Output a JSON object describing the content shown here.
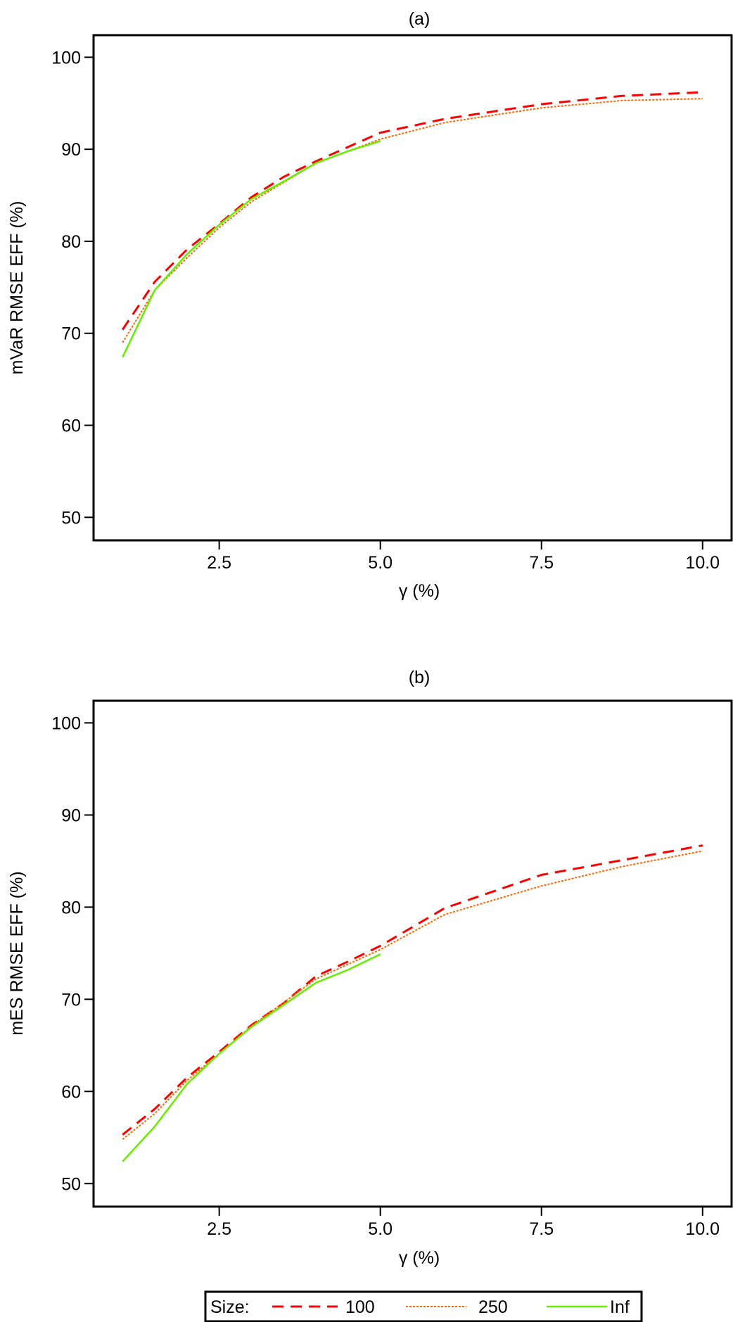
{
  "chart_data": [
    {
      "type": "line",
      "title": "(a)",
      "xlabel": "γ (%)",
      "ylabel": "mVaR RMSE EFF (%)",
      "xlim": [
        0.55,
        10.45
      ],
      "ylim": [
        47.5,
        102.4
      ],
      "xticks": [
        "2.5",
        "5.0",
        "7.5",
        "10.0"
      ],
      "xtick_values": [
        2.5,
        5.0,
        7.5,
        10.0
      ],
      "yticks": [
        "50",
        "60",
        "70",
        "80",
        "90",
        "100"
      ],
      "ytick_values": [
        50,
        60,
        70,
        80,
        90,
        100
      ],
      "grid": false,
      "series": [
        {
          "name": "100",
          "x": [
            1,
            1.5,
            2,
            2.5,
            3,
            3.5,
            4,
            5,
            6,
            7.5,
            8.75,
            10
          ],
          "y": [
            70.4,
            75.6,
            79.1,
            81.9,
            84.8,
            87.0,
            88.7,
            91.8,
            93.3,
            94.9,
            95.8,
            96.2
          ]
        },
        {
          "name": "250",
          "x": [
            1,
            1.5,
            2,
            2.5,
            3,
            4,
            5,
            6,
            7.5,
            8.75,
            10
          ],
          "y": [
            69.0,
            74.7,
            78.2,
            81.5,
            84.3,
            88.5,
            91.1,
            92.9,
            94.5,
            95.3,
            95.5
          ]
        },
        {
          "name": "Inf",
          "x": [
            1,
            1.5,
            2,
            2.5,
            3,
            3.5,
            4,
            4.5,
            5
          ],
          "y": [
            67.4,
            74.7,
            78.6,
            81.8,
            84.6,
            86.5,
            88.5,
            89.8,
            90.9
          ]
        }
      ]
    },
    {
      "type": "line",
      "title": "(b)",
      "xlabel": "γ (%)",
      "ylabel": "mES RMSE EFF (%)",
      "xlim": [
        0.55,
        10.45
      ],
      "ylim": [
        47.5,
        102.4
      ],
      "xticks": [
        "2.5",
        "5.0",
        "7.5",
        "10.0"
      ],
      "xtick_values": [
        2.5,
        5.0,
        7.5,
        10.0
      ],
      "yticks": [
        "50",
        "60",
        "70",
        "80",
        "90",
        "100"
      ],
      "ytick_values": [
        50,
        60,
        70,
        80,
        90,
        100
      ],
      "grid": false,
      "series": [
        {
          "name": "100",
          "x": [
            1,
            1.5,
            2,
            2.5,
            3,
            3.5,
            4,
            4.5,
            5,
            6,
            7.5,
            8.75,
            10
          ],
          "y": [
            55.3,
            58.1,
            61.5,
            64.3,
            67.2,
            69.6,
            72.5,
            74.1,
            75.8,
            79.9,
            83.5,
            85.1,
            86.7
          ]
        },
        {
          "name": "250",
          "x": [
            1,
            1.5,
            2,
            2.5,
            3,
            4,
            5,
            6,
            7.5,
            8.75,
            10
          ],
          "y": [
            54.8,
            57.6,
            61.2,
            64.1,
            67.1,
            72.2,
            75.4,
            79.2,
            82.3,
            84.4,
            86.1
          ]
        },
        {
          "name": "Inf",
          "x": [
            1,
            1.5,
            2,
            2.5,
            3,
            4,
            4.5,
            5
          ],
          "y": [
            52.4,
            56.2,
            60.8,
            64.1,
            67.0,
            71.8,
            73.2,
            74.9
          ]
        }
      ]
    }
  ],
  "legend": {
    "title": "Size:",
    "placement": "bottom",
    "entries": [
      "100",
      "250",
      "Inf"
    ]
  },
  "colors": {
    "100": "#ff0000",
    "250": "#ff6600",
    "Inf": "#66ee00"
  }
}
